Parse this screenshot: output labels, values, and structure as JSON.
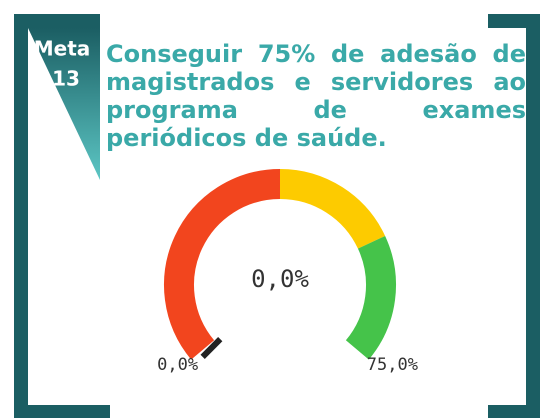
{
  "badge": {
    "label": "Meta",
    "number": "13"
  },
  "heading": "Conseguir 75% de adesão de magistrados e servidores ao programa de exames periódicos de saúde.",
  "chart_data": {
    "type": "gauge",
    "value": 0,
    "value_label": "0,0%",
    "min": 0,
    "max": 75,
    "ticks": [
      {
        "value": 0,
        "label": "0,0%"
      },
      {
        "value": 75,
        "label": "75,0%"
      }
    ],
    "bands": [
      {
        "from": 0,
        "to": 37.5,
        "color": "#f2451e"
      },
      {
        "from": 37.5,
        "to": 56.25,
        "color": "#fdcb00"
      },
      {
        "from": 56.25,
        "to": 75,
        "color": "#45c34a"
      }
    ],
    "needle_color": "#222222"
  }
}
